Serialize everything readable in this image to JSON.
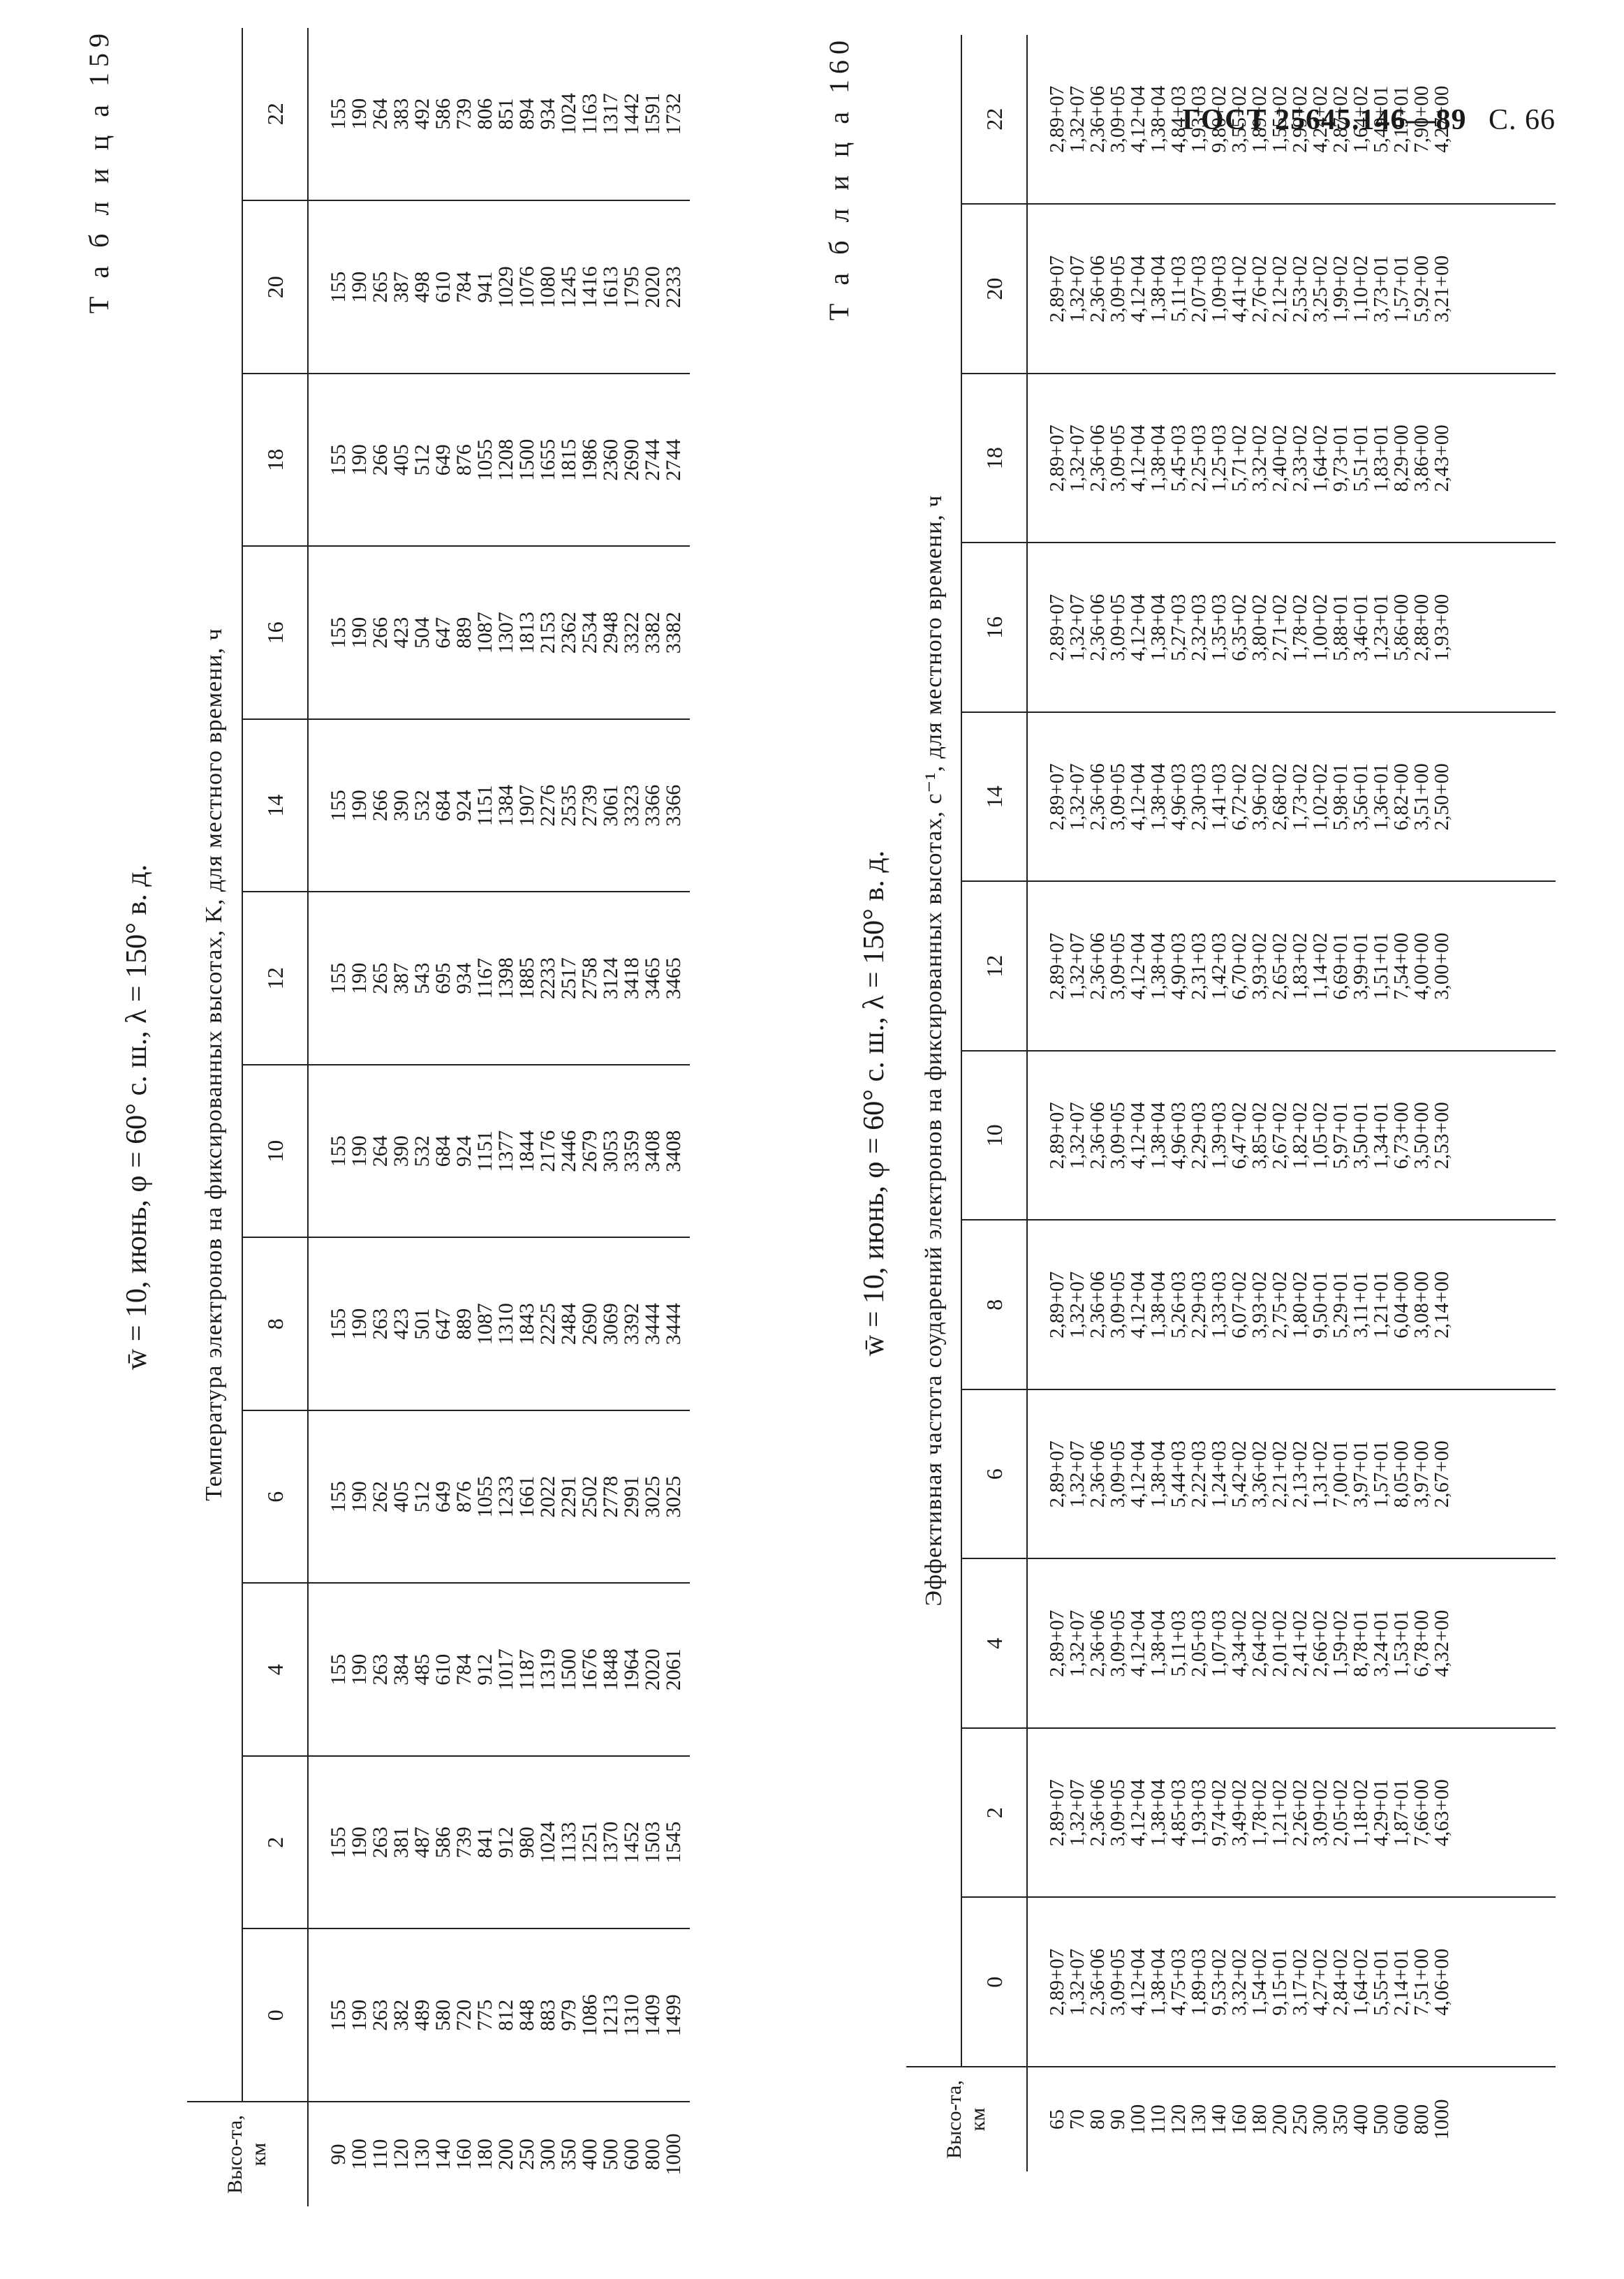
{
  "header": {
    "code": "ГОСТ 25645.146—89",
    "page": "С. 66"
  },
  "table159": {
    "number": "Т а б л и ц а  159",
    "title": "w̄ = 10, июнь, φ = 60° с. ш., λ = 150° в. д.",
    "span_header": "Температура электронов на фиксированных высотах, K, для местного времени, ч",
    "alt_header": "Высо-та, км",
    "hours": [
      "0",
      "2",
      "4",
      "6",
      "8",
      "10",
      "12",
      "14",
      "16",
      "18",
      "20",
      "22"
    ],
    "altitudes": [
      "90",
      "100",
      "110",
      "120",
      "130",
      "140",
      "160",
      "180",
      "200",
      "250",
      "300",
      "350",
      "400",
      "500",
      "600",
      "800",
      "1000"
    ],
    "columns": [
      [
        "155",
        "190",
        "263",
        "382",
        "489",
        "580",
        "720",
        "775",
        "812",
        "848",
        "883",
        "979",
        "1086",
        "1213",
        "1310",
        "1409",
        "1499"
      ],
      [
        "155",
        "190",
        "263",
        "381",
        "487",
        "586",
        "739",
        "841",
        "912",
        "980",
        "1024",
        "1133",
        "1251",
        "1370",
        "1452",
        "1503",
        "1545"
      ],
      [
        "155",
        "190",
        "263",
        "384",
        "485",
        "610",
        "784",
        "912",
        "1017",
        "1187",
        "1319",
        "1500",
        "1676",
        "1848",
        "1964",
        "2020",
        "2061"
      ],
      [
        "155",
        "190",
        "262",
        "405",
        "512",
        "649",
        "876",
        "1055",
        "1233",
        "1661",
        "2022",
        "2291",
        "2502",
        "2778",
        "2991",
        "3025",
        "3025"
      ],
      [
        "155",
        "190",
        "263",
        "423",
        "501",
        "647",
        "889",
        "1087",
        "1310",
        "1843",
        "2225",
        "2484",
        "2690",
        "3069",
        "3392",
        "3444",
        "3444"
      ],
      [
        "155",
        "190",
        "264",
        "390",
        "532",
        "684",
        "924",
        "1151",
        "1377",
        "1844",
        "2176",
        "2446",
        "2679",
        "3053",
        "3359",
        "3408",
        "3408"
      ],
      [
        "155",
        "190",
        "265",
        "387",
        "543",
        "695",
        "934",
        "1167",
        "1398",
        "1885",
        "2233",
        "2517",
        "2758",
        "3124",
        "3418",
        "3465",
        "3465"
      ],
      [
        "155",
        "190",
        "266",
        "390",
        "532",
        "684",
        "924",
        "1151",
        "1384",
        "1907",
        "2276",
        "2535",
        "2739",
        "3061",
        "3323",
        "3366",
        "3366"
      ],
      [
        "155",
        "190",
        "266",
        "423",
        "504",
        "647",
        "889",
        "1087",
        "1307",
        "1813",
        "2153",
        "2362",
        "2534",
        "2948",
        "3322",
        "3382",
        "3382"
      ],
      [
        "155",
        "190",
        "266",
        "405",
        "512",
        "649",
        "876",
        "1055",
        "1208",
        "1500",
        "1655",
        "1815",
        "1986",
        "2360",
        "2690",
        "2744",
        "2744"
      ],
      [
        "155",
        "190",
        "265",
        "387",
        "498",
        "610",
        "784",
        "941",
        "1029",
        "1076",
        "1080",
        "1245",
        "1416",
        "1613",
        "1795",
        "2020",
        "2233"
      ],
      [
        "155",
        "190",
        "264",
        "383",
        "492",
        "586",
        "739",
        "806",
        "851",
        "894",
        "934",
        "1024",
        "1163",
        "1317",
        "1442",
        "1591",
        "1732"
      ]
    ]
  },
  "table160": {
    "number": "Т а б л и ц а  160",
    "title": "w̄ = 10, июнь, φ = 60° с. ш., λ = 150° в. д.",
    "span_header": "Эффективная частота соударений электронов на фиксированных высотах, с⁻¹, для местного времени, ч",
    "alt_header": "Высо-та, км",
    "hours": [
      "0",
      "2",
      "4",
      "6",
      "8",
      "10",
      "12",
      "14",
      "16",
      "18",
      "20",
      "22"
    ],
    "altitudes": [
      "65",
      "70",
      "80",
      "90",
      "100",
      "110",
      "120",
      "130",
      "140",
      "160",
      "180",
      "200",
      "250",
      "300",
      "350",
      "400",
      "500",
      "600",
      "800",
      "1000"
    ],
    "columns": [
      [
        "2,89+07",
        "1,32+07",
        "2,36+06",
        "3,09+05",
        "4,12+04",
        "1,38+04",
        "4,75+03",
        "1,89+03",
        "9,53+02",
        "3,32+02",
        "1,54+02",
        "9,15+01",
        "3,17+02",
        "4,27+02",
        "2,84+02",
        "1,64+02",
        "5,55+01",
        "2,14+01",
        "7,51+00",
        "4,06+00"
      ],
      [
        "2,89+07",
        "1,32+07",
        "2,36+06",
        "3,09+05",
        "4,12+04",
        "1,38+04",
        "4,85+03",
        "1,93+03",
        "9,74+02",
        "3,49+02",
        "1,78+02",
        "1,21+02",
        "2,26+02",
        "3,09+02",
        "2,05+02",
        "1,18+02",
        "4,29+01",
        "1,87+01",
        "7,66+00",
        "4,63+00"
      ],
      [
        "2,89+07",
        "1,32+07",
        "2,36+06",
        "3,09+05",
        "4,12+04",
        "1,38+04",
        "5,11+03",
        "2,05+03",
        "1,07+03",
        "4,34+02",
        "2,64+02",
        "2,01+02",
        "2,41+02",
        "2,66+02",
        "1,59+02",
        "8,78+01",
        "3,24+01",
        "1,53+01",
        "6,78+00",
        "4,32+00"
      ],
      [
        "2,89+07",
        "1,32+07",
        "2,36+06",
        "3,09+05",
        "4,12+04",
        "1,38+04",
        "5,44+03",
        "2,22+03",
        "1,24+03",
        "5,42+02",
        "3,36+02",
        "2,21+02",
        "2,13+02",
        "1,31+02",
        "7,00+01",
        "3,97+01",
        "1,57+01",
        "8,05+00",
        "3,97+00",
        "2,67+00"
      ],
      [
        "2,89+07",
        "1,32+07",
        "2,36+06",
        "3,09+05",
        "4,12+04",
        "1,38+04",
        "5,26+03",
        "2,29+03",
        "1,33+03",
        "6,07+02",
        "3,93+02",
        "2,75+02",
        "1,80+02",
        "9,50+01",
        "5,29+01",
        "3,11+01",
        "1,21+01",
        "6,04+00",
        "3,08+00",
        "2,14+00"
      ],
      [
        "2,89+07",
        "1,32+07",
        "2,36+06",
        "3,09+05",
        "4,12+04",
        "1,38+04",
        "4,96+03",
        "2,29+03",
        "1,39+03",
        "6,47+02",
        "3,85+02",
        "2,67+02",
        "1,82+02",
        "1,05+02",
        "5,97+01",
        "3,50+01",
        "1,34+01",
        "6,73+00",
        "3,50+00",
        "2,53+00"
      ],
      [
        "2,89+07",
        "1,32+07",
        "2,36+06",
        "3,09+05",
        "4,12+04",
        "1,38+04",
        "4,90+03",
        "2,31+03",
        "1,42+03",
        "6,70+02",
        "3,93+02",
        "2,65+02",
        "1,83+02",
        "1,14+02",
        "6,69+01",
        "3,99+01",
        "1,51+01",
        "7,54+00",
        "4,00+00",
        "3,00+00"
      ],
      [
        "2,89+07",
        "1,32+07",
        "2,36+06",
        "3,09+05",
        "4,12+04",
        "1,38+04",
        "4,96+03",
        "2,30+03",
        "1,41+03",
        "6,72+02",
        "3,96+02",
        "2,68+02",
        "1,73+02",
        "1,02+02",
        "5,98+01",
        "3,56+01",
        "1,36+01",
        "6,82+00",
        "3,51+00",
        "2,50+00"
      ],
      [
        "2,89+07",
        "1,32+07",
        "2,36+06",
        "3,09+05",
        "4,12+04",
        "1,38+04",
        "5,27+03",
        "2,32+03",
        "1,35+03",
        "6,35+02",
        "3,80+02",
        "2,71+02",
        "1,78+02",
        "1,00+02",
        "5,88+01",
        "3,46+01",
        "1,23+01",
        "5,86+00",
        "2,88+00",
        "1,93+00"
      ],
      [
        "2,89+07",
        "1,32+07",
        "2,36+06",
        "3,09+05",
        "4,12+04",
        "1,38+04",
        "5,45+03",
        "2,25+03",
        "1,25+03",
        "5,71+02",
        "3,32+02",
        "2,40+02",
        "2,33+02",
        "1,64+02",
        "9,73+01",
        "5,51+01",
        "1,83+01",
        "8,29+00",
        "3,86+00",
        "2,43+00"
      ],
      [
        "2,89+07",
        "1,32+07",
        "2,36+06",
        "3,09+05",
        "4,12+04",
        "1,38+04",
        "5,11+03",
        "2,07+03",
        "1,09+03",
        "4,41+02",
        "2,76+02",
        "2,12+02",
        "2,53+02",
        "3,25+02",
        "1,99+02",
        "1,10+02",
        "3,73+01",
        "1,57+01",
        "5,92+00",
        "3,21+00"
      ],
      [
        "2,89+07",
        "1,32+07",
        "2,36+06",
        "3,09+05",
        "4,12+04",
        "1,38+04",
        "4,84+03",
        "1,93+03",
        "9,80+02",
        "3,55+02",
        "1,89+02",
        "1,55+02",
        "2,99+02",
        "4,24+02",
        "2,87+02",
        "1,64+02",
        "5,49+01",
        "2,19+01",
        "7,90+00",
        "4,27+00"
      ]
    ]
  }
}
